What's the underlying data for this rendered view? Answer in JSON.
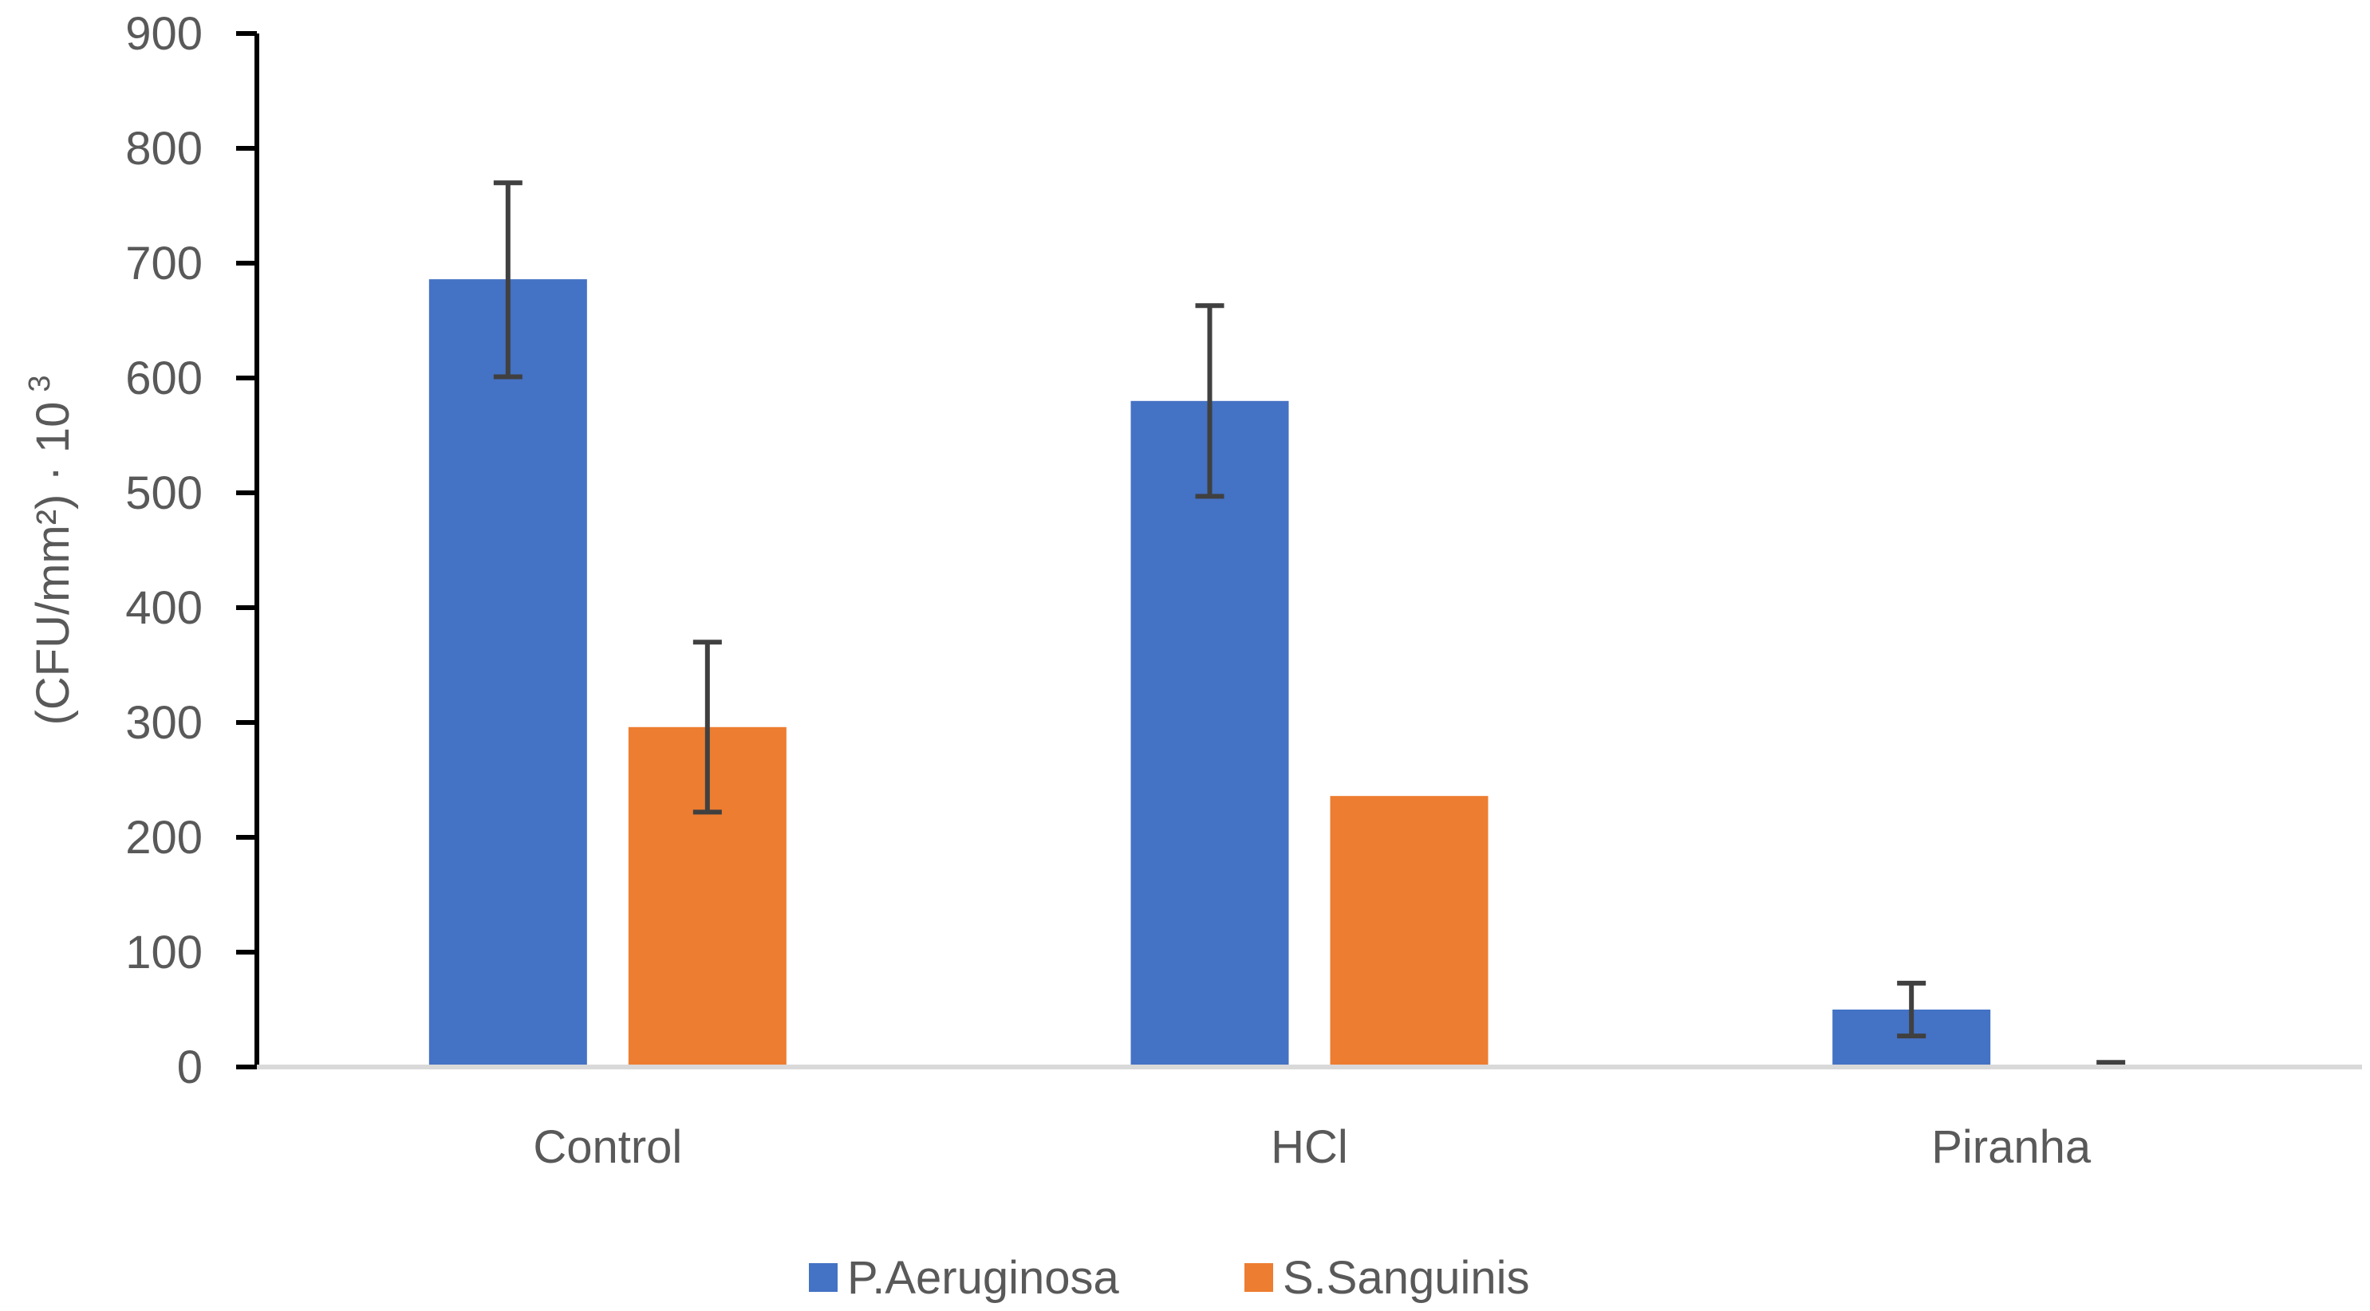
{
  "chart_data": {
    "type": "bar",
    "title": "",
    "xlabel": "",
    "ylabel": "(CFU/mm²) · 10",
    "ylabel_exponent": "3",
    "ylim": [
      0,
      900
    ],
    "yticks": [
      0,
      100,
      200,
      300,
      400,
      500,
      600,
      700,
      800,
      900
    ],
    "ytick_labels": [
      "0",
      "100",
      "200",
      "300",
      "400",
      "500",
      "600",
      "700",
      "800",
      "900"
    ],
    "categories": [
      "Control",
      "HCl",
      "Piranha"
    ],
    "series": [
      {
        "name": "P.Aeruginosa",
        "color": "#4472C4",
        "values": [
          686,
          580,
          50
        ],
        "error_low": [
          601,
          497,
          27
        ],
        "error_high": [
          770,
          663,
          73
        ]
      },
      {
        "name": "S.Sanguinis",
        "color": "#ED7D31",
        "values": [
          296,
          236,
          2
        ],
        "error_low": [
          222,
          null,
          0
        ],
        "error_high": [
          370,
          null,
          4
        ]
      }
    ],
    "legend_position": "bottom",
    "grid": false
  }
}
